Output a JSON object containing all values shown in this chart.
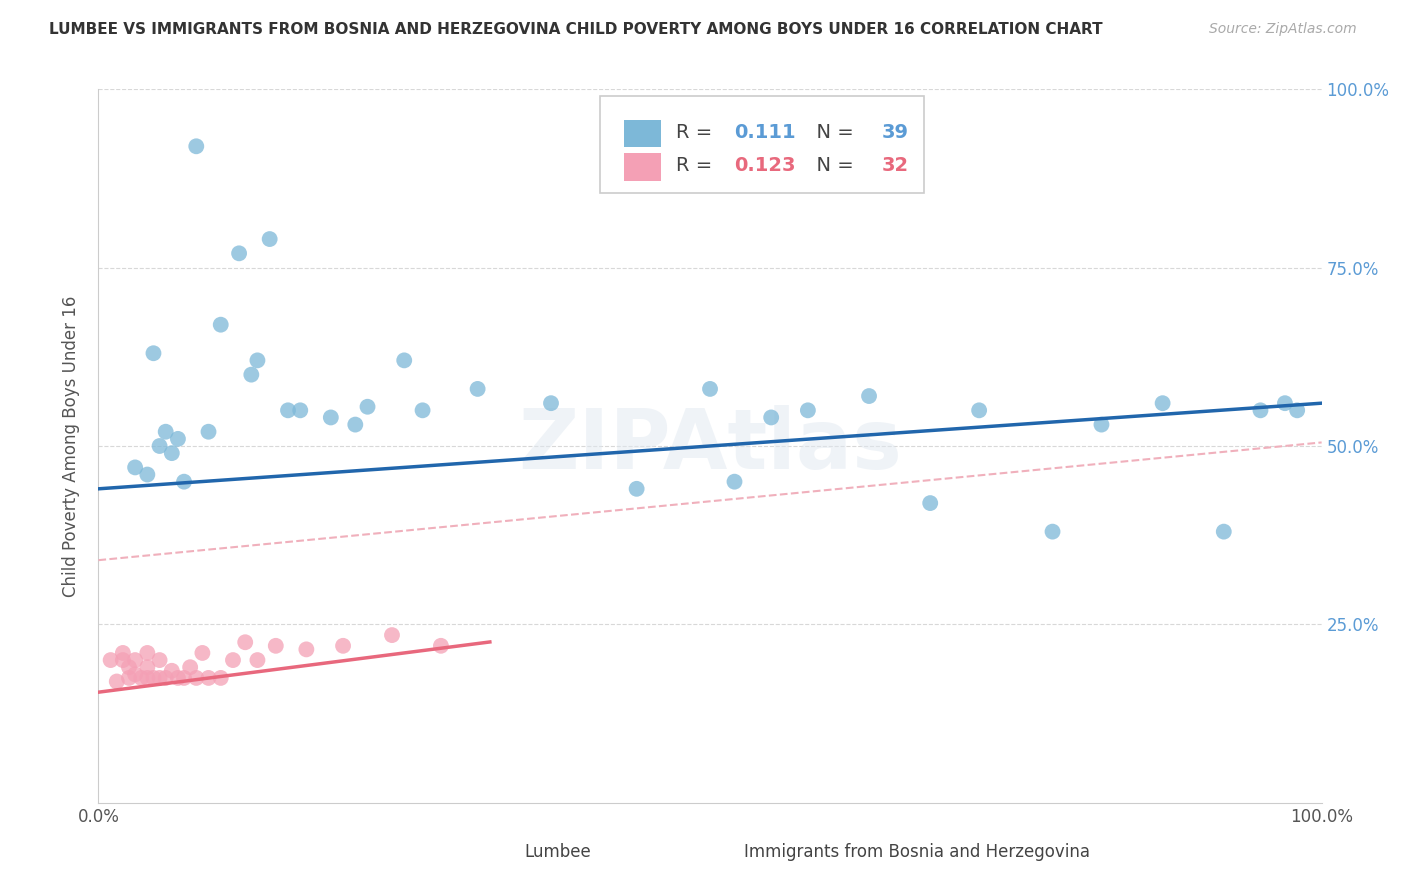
{
  "title": "LUMBEE VS IMMIGRANTS FROM BOSNIA AND HERZEGOVINA CHILD POVERTY AMONG BOYS UNDER 16 CORRELATION CHART",
  "source": "Source: ZipAtlas.com",
  "ylabel": "Child Poverty Among Boys Under 16",
  "watermark": "ZIPAtlas",
  "lumbee_R": "0.111",
  "lumbee_N": "39",
  "bosnia_R": "0.123",
  "bosnia_N": "32",
  "lumbee_color": "#7db8d8",
  "bosnia_color": "#f4a0b5",
  "lumbee_line_color": "#2166ac",
  "bosnia_line_color": "#e8687d",
  "dashed_line_color": "#f0b0bc",
  "right_label_color": "#5b9bd5",
  "x_ticks": [
    0.0,
    0.25,
    0.5,
    0.75,
    1.0
  ],
  "x_tick_labels": [
    "0.0%",
    "",
    "",
    "",
    "100.0%"
  ],
  "y_ticks": [
    0.0,
    0.25,
    0.5,
    0.75,
    1.0
  ],
  "y_tick_labels_right": [
    "",
    "25.0%",
    "50.0%",
    "75.0%",
    "100.0%"
  ],
  "lumbee_x": [
    0.03,
    0.08,
    0.05,
    0.045,
    0.04,
    0.06,
    0.07,
    0.065,
    0.055,
    0.09,
    0.1,
    0.115,
    0.125,
    0.13,
    0.14,
    0.155,
    0.165,
    0.19,
    0.21,
    0.22,
    0.25,
    0.265,
    0.31,
    0.37,
    0.44,
    0.5,
    0.52,
    0.55,
    0.58,
    0.63,
    0.68,
    0.72,
    0.78,
    0.82,
    0.87,
    0.92,
    0.95,
    0.97,
    0.98
  ],
  "lumbee_y": [
    0.47,
    0.92,
    0.5,
    0.63,
    0.46,
    0.49,
    0.45,
    0.51,
    0.52,
    0.52,
    0.67,
    0.77,
    0.6,
    0.62,
    0.79,
    0.55,
    0.55,
    0.54,
    0.53,
    0.555,
    0.62,
    0.55,
    0.58,
    0.56,
    0.44,
    0.58,
    0.45,
    0.54,
    0.55,
    0.57,
    0.42,
    0.55,
    0.38,
    0.53,
    0.56,
    0.38,
    0.55,
    0.56,
    0.55
  ],
  "bosnia_x": [
    0.01,
    0.015,
    0.02,
    0.02,
    0.025,
    0.025,
    0.03,
    0.03,
    0.035,
    0.04,
    0.04,
    0.04,
    0.045,
    0.05,
    0.05,
    0.055,
    0.06,
    0.065,
    0.07,
    0.075,
    0.08,
    0.085,
    0.09,
    0.1,
    0.11,
    0.12,
    0.13,
    0.145,
    0.17,
    0.2,
    0.24,
    0.28
  ],
  "bosnia_y": [
    0.2,
    0.17,
    0.2,
    0.21,
    0.175,
    0.19,
    0.18,
    0.2,
    0.175,
    0.175,
    0.19,
    0.21,
    0.175,
    0.175,
    0.2,
    0.175,
    0.185,
    0.175,
    0.175,
    0.19,
    0.175,
    0.21,
    0.175,
    0.175,
    0.2,
    0.225,
    0.2,
    0.22,
    0.215,
    0.22,
    0.235,
    0.22
  ],
  "lumbee_line_intercept": 0.44,
  "lumbee_line_slope": 0.12,
  "dashed_line_intercept": 0.34,
  "dashed_line_slope": 0.165,
  "bosnia_line_intercept": 0.155,
  "bosnia_line_slope": 0.22,
  "background_color": "#ffffff",
  "grid_color": "#d8d8d8"
}
